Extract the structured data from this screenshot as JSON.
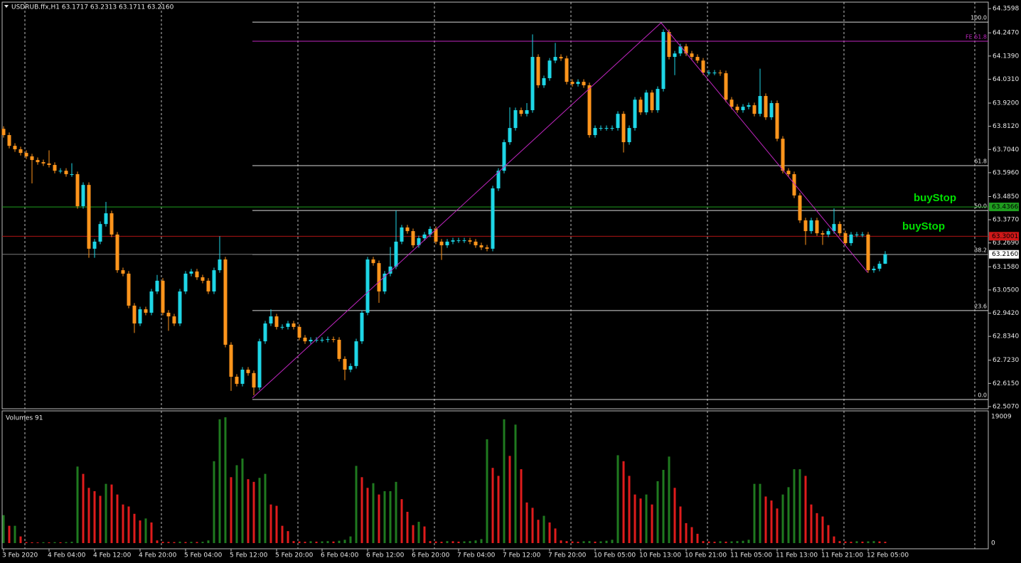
{
  "chart_data": {
    "type": "candlestick",
    "title": "USDRUB.ffx,H1  63.1717 63.2313 63.1711 63.2160",
    "up_color": "#1ed6e6",
    "down_color": "#ff951c",
    "ylim": [
      62.497,
      64.39
    ],
    "yticks": [
      {
        "value": 64.3598,
        "label": "64.3598"
      },
      {
        "value": 64.247,
        "label": "64.2470"
      },
      {
        "value": 64.139,
        "label": "64.1390"
      },
      {
        "value": 64.031,
        "label": "64.0310"
      },
      {
        "value": 63.92,
        "label": "63.9200"
      },
      {
        "value": 63.812,
        "label": "63.8120"
      },
      {
        "value": 63.704,
        "label": "63.7040"
      },
      {
        "value": 63.596,
        "label": "63.5960"
      },
      {
        "value": 63.485,
        "label": "63.4850"
      },
      {
        "value": 63.377,
        "label": "63.3770"
      },
      {
        "value": 63.269,
        "label": "63.2690"
      },
      {
        "value": 63.158,
        "label": "63.1580"
      },
      {
        "value": 63.05,
        "label": "63.0500"
      },
      {
        "value": 62.942,
        "label": "62.9420"
      },
      {
        "value": 62.834,
        "label": "62.8340"
      },
      {
        "value": 62.723,
        "label": "62.7230"
      },
      {
        "value": 62.615,
        "label": "62.6150"
      },
      {
        "value": 62.507,
        "label": "62.5070"
      }
    ],
    "xticks": [
      {
        "value": 0,
        "label": "3 Feb 2020"
      },
      {
        "value": 8,
        "label": "4 Feb 04:00"
      },
      {
        "value": 16,
        "label": "4 Feb 12:00"
      },
      {
        "value": 24,
        "label": "4 Feb 20:00"
      },
      {
        "value": 32,
        "label": "5 Feb 04:00"
      },
      {
        "value": 40,
        "label": "5 Feb 12:00"
      },
      {
        "value": 48,
        "label": "5 Feb 20:00"
      },
      {
        "value": 56,
        "label": "6 Feb 04:00"
      },
      {
        "value": 64,
        "label": "6 Feb 12:00"
      },
      {
        "value": 72,
        "label": "6 Feb 20:00"
      },
      {
        "value": 80,
        "label": "7 Feb 04:00"
      },
      {
        "value": 88,
        "label": "7 Feb 12:00"
      },
      {
        "value": 96,
        "label": "7 Feb 20:00"
      },
      {
        "value": 104,
        "label": "10 Feb 05:00"
      },
      {
        "value": 112,
        "label": "10 Feb 13:00"
      },
      {
        "value": 120,
        "label": "10 Feb 21:00"
      },
      {
        "value": 128,
        "label": "11 Feb 05:00"
      },
      {
        "value": 136,
        "label": "11 Feb 13:00"
      },
      {
        "value": 144,
        "label": "11 Feb 21:00"
      },
      {
        "value": 152,
        "label": "12 Feb 05:00"
      }
    ],
    "xgrid": [
      3.75,
      27.75,
      51.75,
      75.75,
      99.75,
      123.75,
      147.75,
      170.75
    ],
    "open": [
      63.8,
      63.771,
      63.721,
      63.705,
      63.688,
      63.672,
      63.655,
      63.645,
      63.639,
      63.632,
      63.605,
      63.605,
      63.589,
      63.589,
      63.44,
      63.539,
      63.242,
      63.275,
      63.357,
      63.407,
      63.308,
      63.142,
      63.126,
      62.977,
      62.894,
      62.96,
      62.944,
      63.043,
      63.093,
      62.944,
      62.927,
      62.894,
      63.043,
      63.126,
      63.136,
      63.109,
      63.093,
      63.043,
      63.142,
      63.192,
      62.795,
      62.646,
      62.613,
      62.679,
      62.663,
      62.596,
      62.811,
      62.894,
      62.927,
      62.878,
      62.878,
      62.894,
      62.878,
      62.828,
      62.811,
      62.818,
      62.818,
      62.818,
      62.821,
      62.818,
      62.729,
      62.679,
      62.696,
      62.811,
      62.944,
      63.192,
      63.175,
      63.043,
      63.126,
      63.159,
      63.275,
      63.341,
      63.324,
      63.258,
      63.291,
      63.308,
      63.334,
      63.275,
      63.258,
      63.275,
      63.281,
      63.281,
      63.281,
      63.275,
      63.258,
      63.248,
      63.242,
      63.523,
      63.605,
      63.738,
      63.804,
      63.887,
      63.87,
      63.887,
      64.135,
      64.003,
      64.036,
      64.118,
      64.135,
      64.128,
      64.019,
      64.009,
      64.019,
      64.003,
      63.771,
      63.804,
      63.804,
      63.804,
      63.804,
      63.87,
      63.738,
      63.804,
      63.936,
      63.877,
      63.969,
      63.887,
      63.986,
      64.251,
      64.135,
      64.151,
      64.184,
      64.151,
      64.135,
      64.118,
      64.062,
      64.062,
      64.062,
      64.059,
      63.936,
      63.903,
      63.887,
      63.903,
      63.91,
      63.87,
      63.953,
      63.854,
      63.92,
      63.754,
      63.605,
      63.589,
      63.49,
      63.374,
      63.324,
      63.374,
      63.314,
      63.308,
      63.324,
      63.357,
      63.314,
      63.268,
      63.308,
      63.308,
      63.308,
      63.142,
      63.149,
      63.172
    ],
    "high": [
      63.812,
      63.783,
      63.733,
      63.717,
      63.7,
      63.684,
      63.667,
      63.657,
      63.7,
      63.644,
      63.617,
      63.617,
      63.64,
      63.601,
      63.551,
      63.551,
      63.287,
      63.369,
      63.46,
      63.419,
      63.32,
      63.154,
      63.138,
      62.989,
      62.972,
      62.972,
      63.055,
      63.12,
      63.105,
      62.956,
      62.939,
      63.055,
      63.138,
      63.148,
      63.148,
      63.121,
      63.105,
      63.154,
      63.3,
      63.204,
      62.807,
      62.658,
      62.691,
      62.691,
      62.675,
      62.823,
      62.906,
      62.96,
      62.939,
      62.89,
      62.906,
      62.906,
      62.89,
      62.84,
      62.83,
      62.83,
      62.83,
      62.833,
      62.833,
      62.83,
      62.741,
      62.708,
      62.823,
      62.956,
      63.204,
      63.204,
      63.187,
      63.138,
      63.25,
      63.42,
      63.353,
      63.353,
      63.336,
      63.303,
      63.32,
      63.346,
      63.346,
      63.287,
      63.287,
      63.293,
      63.293,
      63.293,
      63.293,
      63.287,
      63.27,
      63.26,
      63.535,
      63.617,
      63.75,
      63.9,
      63.899,
      63.899,
      63.92,
      64.24,
      64.147,
      64.048,
      64.13,
      64.2,
      64.147,
      64.14,
      64.031,
      64.031,
      64.031,
      64.015,
      63.816,
      63.816,
      63.816,
      63.816,
      63.882,
      63.882,
      63.816,
      63.948,
      63.948,
      63.981,
      63.981,
      63.998,
      64.263,
      64.263,
      64.163,
      64.196,
      64.196,
      64.163,
      64.147,
      64.13,
      64.074,
      64.074,
      64.074,
      64.071,
      63.948,
      63.915,
      63.915,
      63.922,
      63.922,
      64.08,
      63.965,
      63.932,
      63.932,
      63.766,
      63.617,
      63.601,
      63.502,
      63.386,
      63.386,
      63.386,
      63.326,
      63.336,
      63.43,
      63.369,
      63.326,
      63.32,
      63.32,
      63.32,
      63.32,
      63.161,
      63.184,
      63.231
    ],
    "low": [
      63.759,
      63.709,
      63.693,
      63.676,
      63.66,
      63.546,
      63.633,
      63.627,
      63.62,
      63.593,
      63.593,
      63.577,
      63.577,
      63.428,
      63.428,
      63.2,
      63.2,
      63.263,
      63.345,
      63.296,
      63.13,
      63.114,
      62.965,
      62.85,
      62.882,
      62.932,
      62.932,
      63.031,
      62.932,
      62.86,
      62.882,
      62.882,
      63.031,
      63.114,
      63.097,
      63.081,
      63.031,
      63.031,
      63.13,
      62.783,
      62.58,
      62.601,
      62.601,
      62.651,
      62.56,
      62.584,
      62.799,
      62.882,
      62.866,
      62.866,
      62.866,
      62.866,
      62.816,
      62.799,
      62.799,
      62.806,
      62.806,
      62.806,
      62.806,
      62.717,
      62.63,
      62.667,
      62.684,
      62.799,
      62.932,
      63.163,
      62.99,
      63.031,
      63.114,
      63.147,
      63.263,
      63.312,
      63.246,
      63.246,
      63.279,
      63.296,
      63.263,
      63.19,
      63.246,
      63.263,
      63.269,
      63.269,
      63.263,
      63.246,
      63.236,
      63.23,
      63.23,
      63.511,
      63.593,
      63.726,
      63.792,
      63.858,
      63.858,
      63.875,
      63.991,
      63.991,
      64.024,
      64.106,
      64.116,
      64.007,
      63.997,
      63.997,
      63.991,
      63.759,
      63.759,
      63.792,
      63.792,
      63.792,
      63.792,
      63.69,
      63.726,
      63.792,
      63.865,
      63.865,
      63.875,
      63.875,
      63.974,
      64.123,
      64.05,
      64.139,
      64.139,
      64.123,
      64.106,
      64.05,
      64.05,
      64.05,
      64.047,
      63.924,
      63.891,
      63.875,
      63.875,
      63.891,
      63.858,
      63.858,
      63.842,
      63.842,
      63.742,
      63.593,
      63.577,
      63.478,
      63.362,
      63.26,
      63.312,
      63.302,
      63.26,
      63.296,
      63.312,
      63.302,
      63.256,
      63.256,
      63.296,
      63.296,
      63.13,
      63.13,
      63.137,
      63.171
    ],
    "close": [
      63.771,
      63.721,
      63.705,
      63.688,
      63.672,
      63.655,
      63.645,
      63.639,
      63.632,
      63.605,
      63.605,
      63.589,
      63.589,
      63.44,
      63.539,
      63.242,
      63.275,
      63.357,
      63.407,
      63.308,
      63.142,
      63.126,
      62.977,
      62.894,
      62.96,
      62.944,
      63.043,
      63.093,
      62.944,
      62.927,
      62.894,
      63.043,
      63.126,
      63.136,
      63.109,
      63.093,
      63.043,
      63.142,
      63.192,
      62.795,
      62.646,
      62.613,
      62.679,
      62.663,
      62.596,
      62.811,
      62.894,
      62.927,
      62.878,
      62.878,
      62.894,
      62.878,
      62.828,
      62.811,
      62.818,
      62.818,
      62.818,
      62.821,
      62.818,
      62.729,
      62.679,
      62.696,
      62.811,
      62.944,
      63.192,
      63.175,
      63.043,
      63.126,
      63.159,
      63.275,
      63.341,
      63.324,
      63.258,
      63.291,
      63.308,
      63.334,
      63.275,
      63.258,
      63.275,
      63.281,
      63.281,
      63.281,
      63.275,
      63.258,
      63.248,
      63.242,
      63.523,
      63.605,
      63.738,
      63.804,
      63.887,
      63.87,
      63.887,
      64.135,
      64.003,
      64.036,
      64.118,
      64.135,
      64.128,
      64.019,
      64.009,
      64.019,
      64.003,
      63.771,
      63.804,
      63.804,
      63.804,
      63.804,
      63.87,
      63.738,
      63.804,
      63.936,
      63.877,
      63.969,
      63.887,
      63.986,
      64.251,
      64.135,
      64.151,
      64.184,
      64.151,
      64.135,
      64.118,
      64.062,
      64.062,
      64.062,
      64.059,
      63.936,
      63.903,
      63.887,
      63.903,
      63.91,
      63.87,
      63.953,
      63.854,
      63.92,
      63.754,
      63.605,
      63.589,
      63.49,
      63.374,
      63.324,
      63.374,
      63.314,
      63.308,
      63.324,
      63.357,
      63.314,
      63.268,
      63.308,
      63.308,
      63.308,
      63.142,
      63.149,
      63.172,
      63.216
    ],
    "lines": [
      {
        "value": 63.4366,
        "label": "63.4366",
        "color": "#1f9e1f",
        "label_bg": "#1f9e1f"
      },
      {
        "value": 63.3001,
        "label": "63.3001",
        "color": "#b01414",
        "label_bg": "#d01818"
      },
      {
        "value": 63.216,
        "label": "63.2160",
        "color": "#7a7a7a",
        "label_bg": "#ffffff"
      }
    ],
    "fib": {
      "start": 43.75,
      "color": "#d8d8d8",
      "levels": [
        {
          "value": 64.297,
          "label": "100.0"
        },
        {
          "value": 63.629,
          "label": "61.8"
        },
        {
          "value": 63.42,
          "label": "50.0"
        },
        {
          "value": 63.215,
          "label": "38.2"
        },
        {
          "value": 62.954,
          "label": "23.6"
        },
        {
          "value": 62.54,
          "label": "0.0"
        }
      ]
    },
    "fe": {
      "value": 64.208,
      "label": "FE 61.8",
      "color": "#c026c0"
    },
    "zigzag": {
      "x": [
        43.75,
        115.6,
        151.9
      ],
      "values": [
        62.547,
        64.294,
        63.132
      ],
      "color": "#c026c0"
    },
    "annotations": [
      {
        "text": "buyStop"
      },
      {
        "text": "buyStop"
      }
    ],
    "volume": {
      "title": "Volumes 91",
      "ylim": [
        0,
        19009
      ],
      "yticks": [
        19009,
        0
      ],
      "up_color": "#1f7a1f",
      "down_color": "#e01c1c",
      "values": [
        4200,
        2600,
        2600,
        1000,
        150,
        120,
        100,
        130,
        110,
        140,
        120,
        150,
        200,
        11500,
        10400,
        8300,
        7800,
        7100,
        8900,
        8800,
        7300,
        5800,
        5500,
        4400,
        3400,
        3700,
        3100,
        400,
        200,
        180,
        150,
        220,
        160,
        190,
        170,
        200,
        400,
        12300,
        18600,
        18900,
        9900,
        11700,
        12700,
        9600,
        9200,
        9800,
        10400,
        5800,
        5600,
        2600,
        1800,
        300,
        250,
        200,
        280,
        220,
        260,
        300,
        240,
        350,
        500,
        1000,
        11600,
        9900,
        8300,
        9000,
        7300,
        7800,
        7800,
        9200,
        6600,
        4700,
        2700,
        3200,
        2500,
        300,
        250,
        200,
        300,
        280,
        220,
        260,
        300,
        400,
        600,
        15600,
        11300,
        10100,
        18600,
        13100,
        17800,
        11100,
        6100,
        5300,
        3500,
        4100,
        3100,
        2200,
        400,
        300,
        250,
        200,
        280,
        300,
        220,
        260,
        350,
        500,
        13200,
        12300,
        10100,
        7300,
        6700,
        7300,
        5800,
        9300,
        11000,
        13000,
        8300,
        5500,
        3000,
        2400,
        1400,
        300,
        250,
        200,
        280,
        220,
        260,
        300,
        350,
        500,
        8900,
        8900,
        7000,
        6400,
        5200,
        7300,
        8400,
        11100,
        11100,
        10100,
        5800,
        4500,
        4000,
        2700,
        1000,
        300,
        250,
        200,
        280,
        220,
        260,
        300,
        250,
        200
      ]
    }
  }
}
